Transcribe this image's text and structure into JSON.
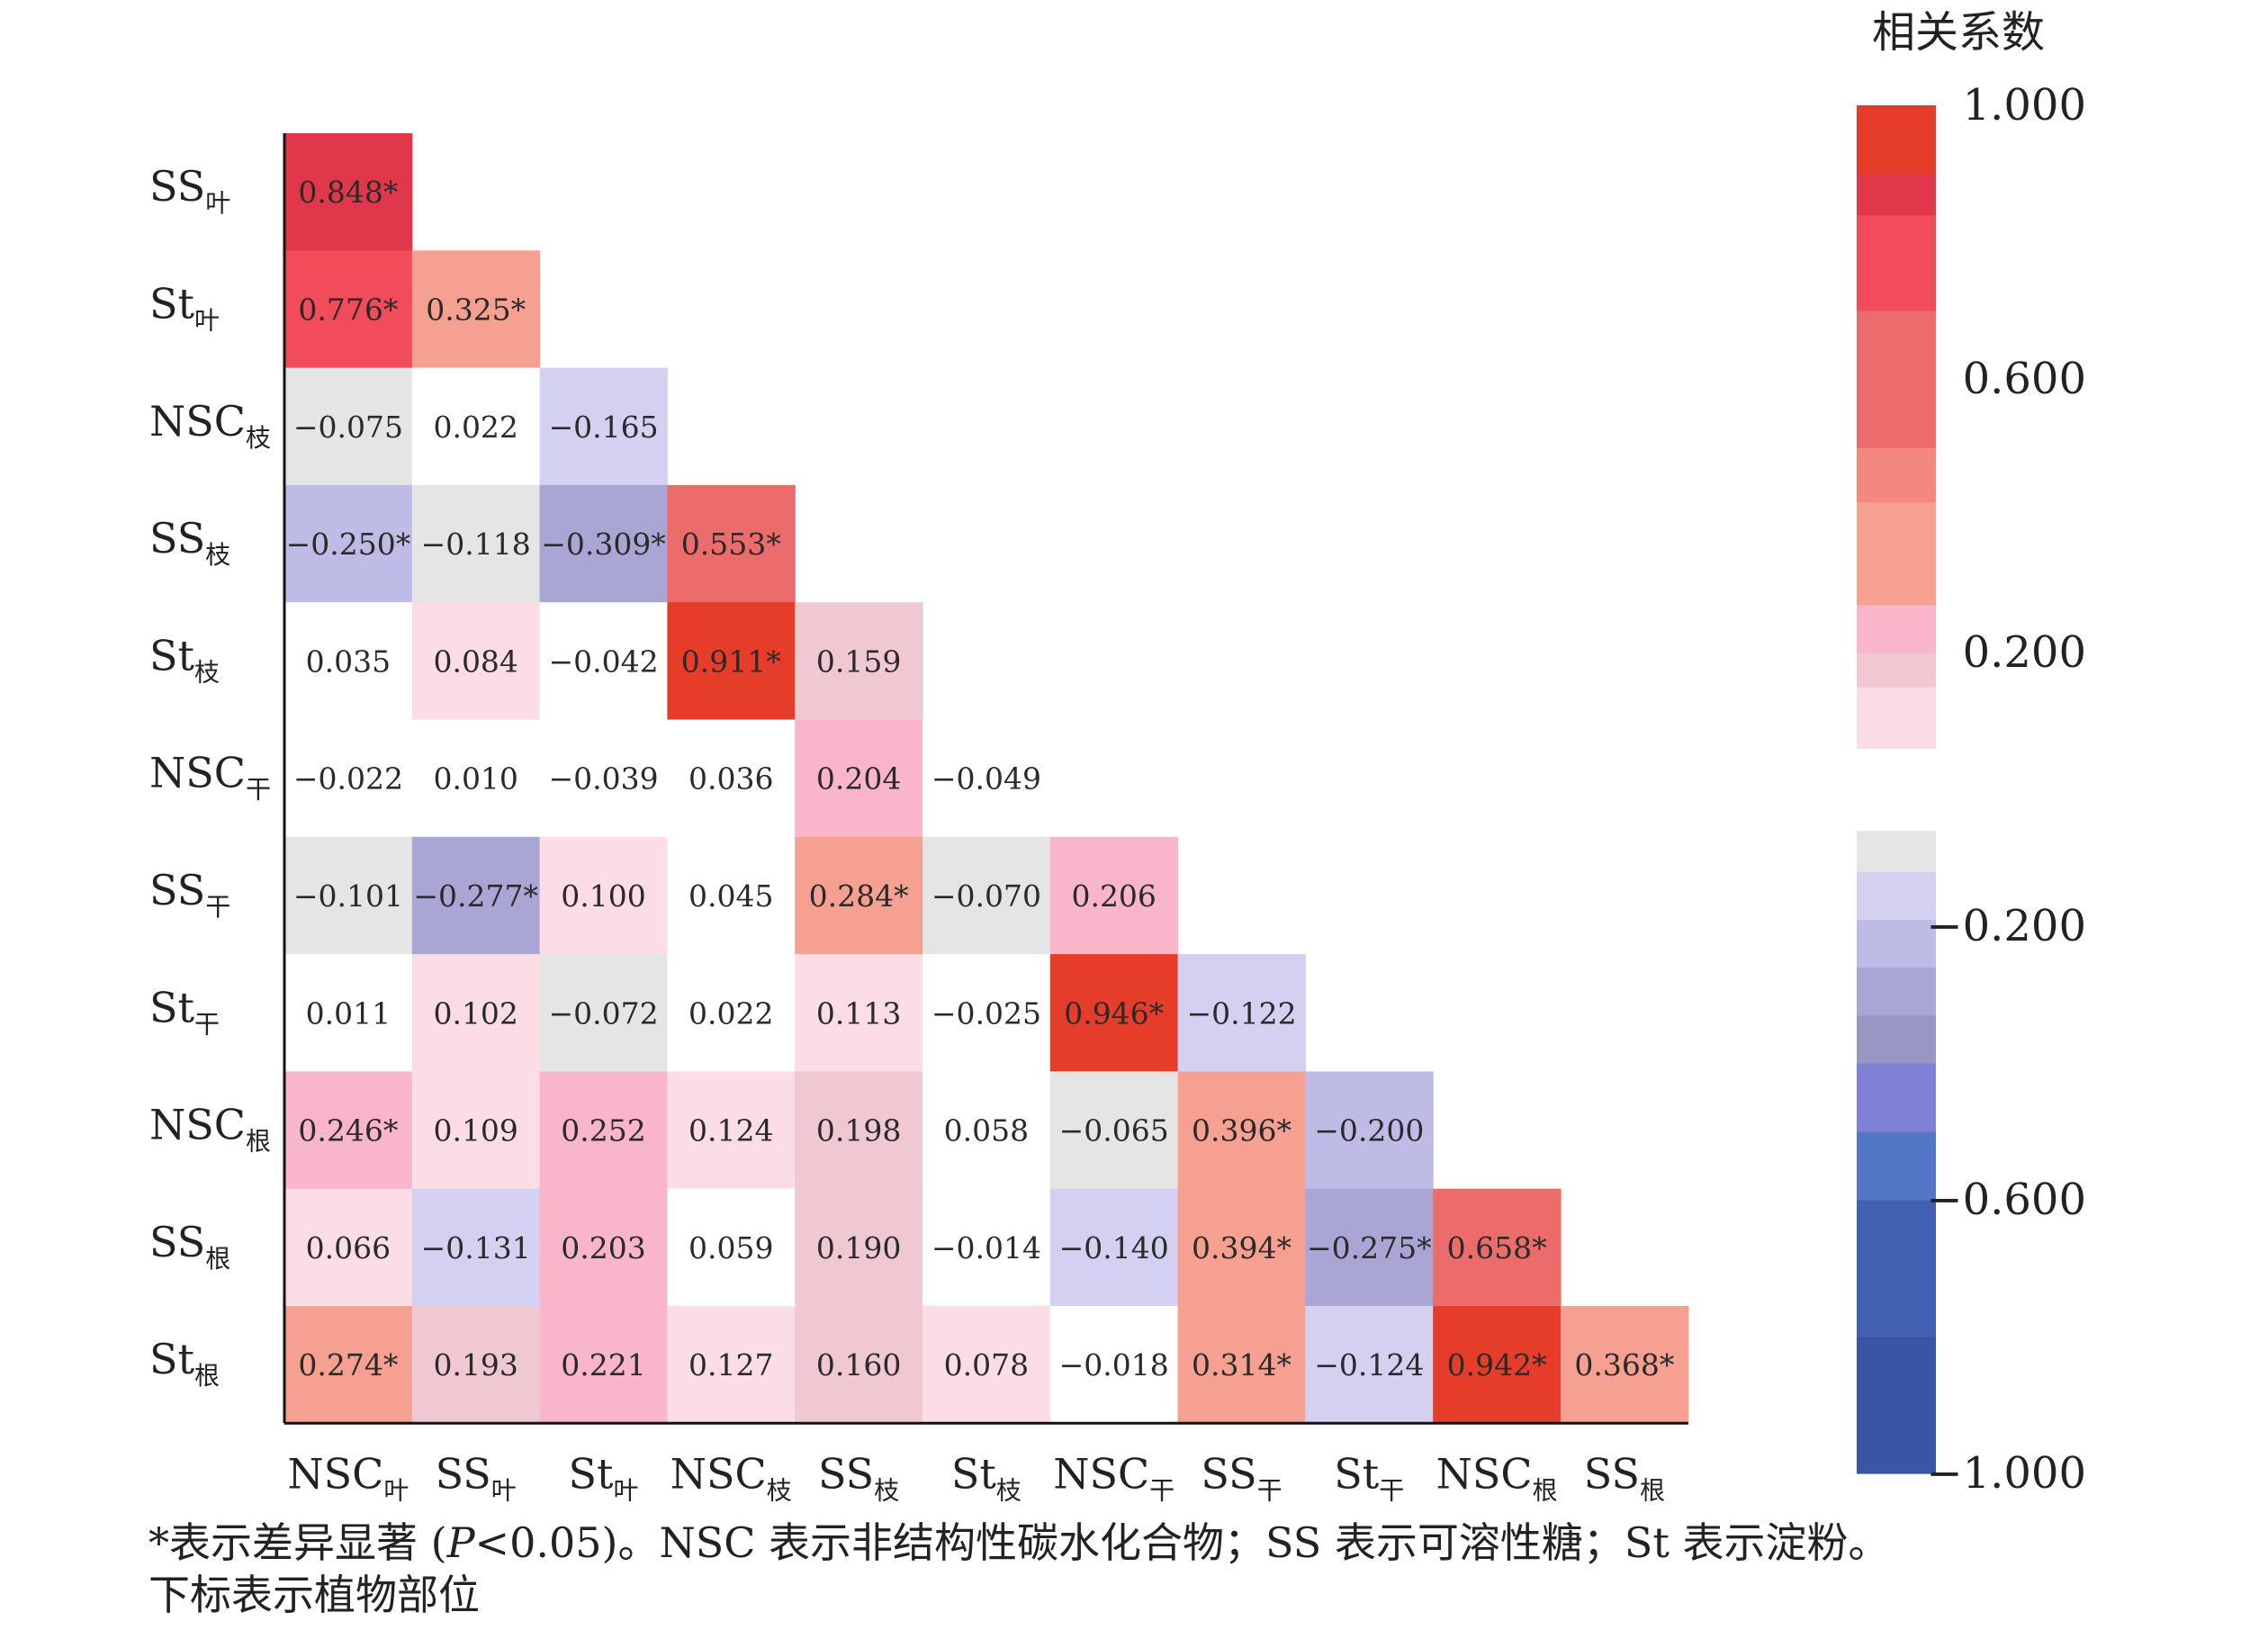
{
  "chart_data": {
    "type": "heatmap",
    "variables": [
      {
        "base": "NSC",
        "sub": "叶"
      },
      {
        "base": "SS",
        "sub": "叶"
      },
      {
        "base": "St",
        "sub": "叶"
      },
      {
        "base": "NSC",
        "sub": "枝"
      },
      {
        "base": "SS",
        "sub": "枝"
      },
      {
        "base": "St",
        "sub": "枝"
      },
      {
        "base": "NSC",
        "sub": "干"
      },
      {
        "base": "SS",
        "sub": "干"
      },
      {
        "base": "St",
        "sub": "干"
      },
      {
        "base": "NSC",
        "sub": "根"
      },
      {
        "base": "SS",
        "sub": "根"
      },
      {
        "base": "St",
        "sub": "根"
      }
    ],
    "rows": [
      {
        "values": [
          0.848
        ],
        "labels": [
          "0.848*"
        ]
      },
      {
        "values": [
          0.776,
          0.325
        ],
        "labels": [
          "0.776*",
          "0.325*"
        ]
      },
      {
        "values": [
          -0.075,
          0.022,
          -0.165
        ],
        "labels": [
          "−0.075",
          "0.022",
          "−0.165"
        ]
      },
      {
        "values": [
          -0.25,
          -0.118,
          -0.309,
          0.553
        ],
        "labels": [
          "−0.250*",
          "−0.118",
          "−0.309*",
          "0.553*"
        ]
      },
      {
        "values": [
          0.035,
          0.084,
          -0.042,
          0.911,
          0.159
        ],
        "labels": [
          "0.035",
          "0.084",
          "−0.042",
          "0.911*",
          "0.159"
        ]
      },
      {
        "values": [
          -0.022,
          0.01,
          -0.039,
          0.036,
          0.204,
          -0.049
        ],
        "labels": [
          "−0.022",
          "0.010",
          "−0.039",
          "0.036",
          "0.204",
          "−0.049"
        ]
      },
      {
        "values": [
          -0.101,
          -0.277,
          0.1,
          0.045,
          0.284,
          -0.07,
          0.206
        ],
        "labels": [
          "−0.101",
          "−0.277*",
          "0.100",
          "0.045",
          "0.284*",
          "−0.070",
          "0.206"
        ]
      },
      {
        "values": [
          0.011,
          0.102,
          -0.072,
          0.022,
          0.113,
          -0.025,
          0.946,
          -0.122
        ],
        "labels": [
          "0.011",
          "0.102",
          "−0.072",
          "0.022",
          "0.113",
          "−0.025",
          "0.946*",
          "−0.122"
        ]
      },
      {
        "values": [
          0.246,
          0.109,
          0.252,
          0.124,
          0.198,
          0.058,
          -0.065,
          0.396,
          -0.2
        ],
        "labels": [
          "0.246*",
          "0.109",
          "0.252",
          "0.124",
          "0.198",
          "0.058",
          "−0.065",
          "0.396*",
          "−0.200"
        ]
      },
      {
        "values": [
          0.066,
          -0.131,
          0.203,
          0.059,
          0.19,
          -0.014,
          -0.14,
          0.394,
          -0.275,
          0.658
        ],
        "labels": [
          "0.066",
          "−0.131",
          "0.203",
          "0.059",
          "0.190",
          "−0.014",
          "−0.140",
          "0.394*",
          "−0.275*",
          "0.658*"
        ]
      },
      {
        "values": [
          0.274,
          0.193,
          0.221,
          0.127,
          0.16,
          0.078,
          -0.018,
          0.314,
          -0.124,
          0.942,
          0.368
        ],
        "labels": [
          "0.274*",
          "0.193",
          "0.221",
          "0.127",
          "0.160",
          "0.078",
          "−0.018",
          "0.314*",
          "−0.124",
          "0.942*",
          "0.368*"
        ]
      }
    ],
    "colorbar": {
      "title": "相关系数",
      "range": [
        -1.0,
        1.0
      ],
      "ticks": [
        {
          "value": 1.0,
          "label": "1.000"
        },
        {
          "value": 0.6,
          "label": "0.600"
        },
        {
          "value": 0.2,
          "label": "0.200"
        },
        {
          "value": -0.2,
          "label": "−0.200"
        },
        {
          "value": -0.6,
          "label": "−0.600"
        },
        {
          "value": -1.0,
          "label": "−1.000"
        }
      ],
      "bands": [
        {
          "from": -1.0,
          "to": -0.8,
          "color": "#3a55a4"
        },
        {
          "from": -0.8,
          "to": -0.6,
          "color": "#4361b3"
        },
        {
          "from": -0.6,
          "to": -0.5,
          "color": "#5476c7"
        },
        {
          "from": -0.5,
          "to": -0.4,
          "color": "#7f80d6"
        },
        {
          "from": -0.4,
          "to": -0.33,
          "color": "#9996c4"
        },
        {
          "from": -0.33,
          "to": -0.26,
          "color": "#a9a6d5"
        },
        {
          "from": -0.26,
          "to": -0.19,
          "color": "#bebbe6"
        },
        {
          "from": -0.19,
          "to": -0.12,
          "color": "#d4d0f2"
        },
        {
          "from": -0.12,
          "to": -0.06,
          "color": "#e5e5e5"
        },
        {
          "from": -0.06,
          "to": 0.06,
          "color": "#ffffff"
        },
        {
          "from": 0.06,
          "to": 0.15,
          "color": "#fddde5"
        },
        {
          "from": 0.15,
          "to": 0.2,
          "color": "#f0c8d2"
        },
        {
          "from": 0.2,
          "to": 0.27,
          "color": "#f9b6cb"
        },
        {
          "from": 0.27,
          "to": 0.42,
          "color": "#f6a091"
        },
        {
          "from": 0.42,
          "to": 0.5,
          "color": "#f4877e"
        },
        {
          "from": 0.5,
          "to": 0.7,
          "color": "#ec6b6b"
        },
        {
          "from": 0.7,
          "to": 0.84,
          "color": "#f24b59"
        },
        {
          "from": 0.84,
          "to": 0.9,
          "color": "#e0384a"
        },
        {
          "from": 0.9,
          "to": 1.0,
          "color": "#e63c2a"
        }
      ]
    }
  },
  "caption": {
    "line1_prefix": "*表示差异显著 (",
    "line1_p": "P",
    "line1_rest": "<0.05)。NSC 表示非结构性碳水化合物；SS 表示可溶性糖；St 表示淀粉。",
    "line2": "下标表示植物部位"
  }
}
